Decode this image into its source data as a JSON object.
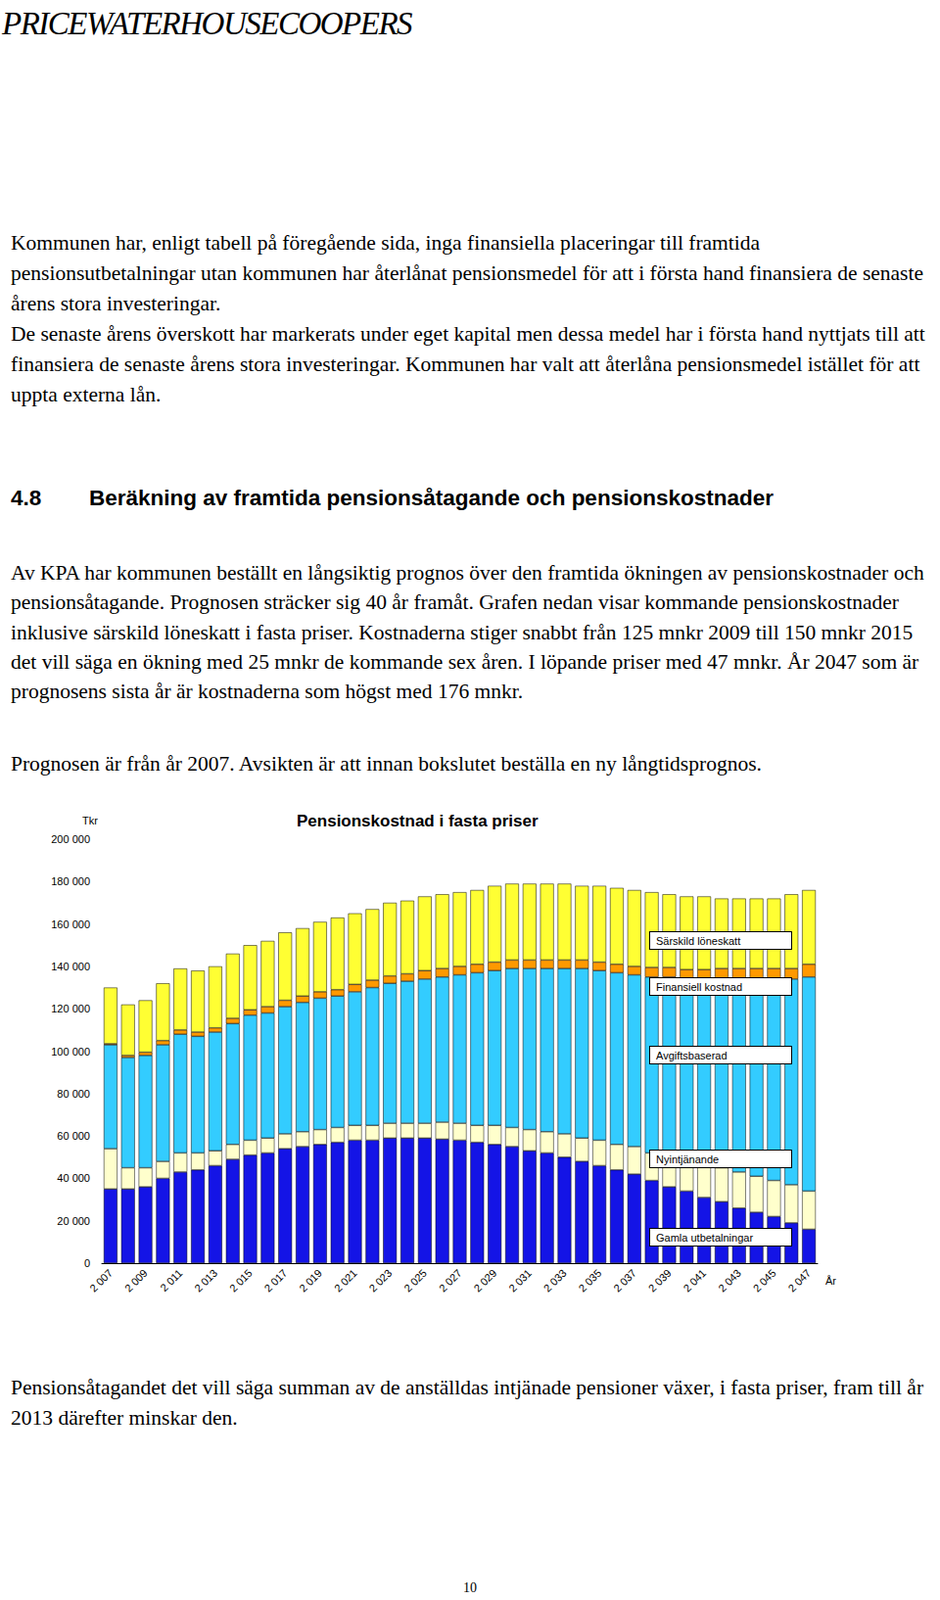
{
  "header": {
    "logo": "PRICEWATERHOUSECOOPERS"
  },
  "paragraphs_before": [
    "Kommunen har, enligt tabell på föregående sida, inga finansiella placeringar till framtida pensionsutbetalningar utan kommunen har återlånat pensionsmedel för att i första hand finansiera de senaste årens stora investeringar.",
    "De senaste årens överskott har markerats under eget kapital men dessa medel har i första hand nyttjats till att finansiera de senaste årens stora investeringar. Kommunen har valt att återlåna pensionsmedel istället för att uppta externa lån."
  ],
  "section": {
    "number": "4.8",
    "heading": "Beräkning av framtida pensionsåtagande och pensionskostnader"
  },
  "paragraphs_section": [
    "Av KPA har kommunen beställt en långsiktig prognos över den framtida ökningen av pensionskostnader och pensionsåtagande. Prognosen sträcker sig 40 år framåt. Grafen nedan visar kommande pensionskostnader inklusive särskild löneskatt i fasta priser. Kostnaderna stiger snabbt från 125 mnkr 2009 till 150 mnkr 2015 det vill säga en ökning med 25 mnkr de kommande sex åren. I löpande priser med 47 mnkr. År 2047 som är prognosens sista år är kostnaderna som högst med 176 mnkr.",
    "Prognosen är från år 2007. Avsikten är att innan bokslutet beställa en ny långtidsprognos."
  ],
  "chart_data": {
    "type": "bar",
    "title": "Pensionskostnad i fasta priser",
    "y_label": "Tkr",
    "x_label": "År",
    "stacked": true,
    "grid": false,
    "legend": "right",
    "categories": [
      "2 007",
      null,
      "2 009",
      null,
      "2 011",
      null,
      "2 013",
      null,
      "2 015",
      null,
      "2 017",
      null,
      "2 019",
      null,
      "2 021",
      null,
      "2 023",
      null,
      "2 025",
      null,
      "2 027",
      null,
      "2 029",
      null,
      "2 031",
      null,
      "2 033",
      null,
      "2 035",
      null,
      "2 037",
      null,
      "2 039",
      null,
      "2 041",
      null,
      "2 043",
      null,
      "2 045",
      null,
      "2 047"
    ],
    "series": [
      {
        "name": "Gamla utbetalningar",
        "color": "#1414e6",
        "values": [
          35000,
          35000,
          36000,
          40000,
          43000,
          44000,
          46000,
          49000,
          51000,
          52000,
          54000,
          55000,
          56000,
          57000,
          58000,
          58000,
          59000,
          59000,
          59000,
          58500,
          58000,
          57000,
          56000,
          55000,
          53000,
          52000,
          50000,
          48000,
          46000,
          44000,
          42000,
          39000,
          36000,
          34000,
          31000,
          29000,
          26000,
          24000,
          22000,
          19000,
          16000
        ]
      },
      {
        "name": "Nyintjänande",
        "color": "#ffffcc",
        "values": [
          19000,
          10000,
          9000,
          8000,
          9000,
          8000,
          7000,
          7000,
          7000,
          7000,
          7000,
          7000,
          7000,
          7000,
          7000,
          7000,
          7000,
          7000,
          7000,
          8000,
          8000,
          8000,
          9000,
          9000,
          10000,
          10000,
          11000,
          11000,
          12000,
          12000,
          13000,
          13000,
          14000,
          15000,
          15000,
          16000,
          17000,
          17000,
          17000,
          18000,
          18000
        ]
      },
      {
        "name": "Avgiftsbaserad",
        "color": "#33ccff",
        "values": [
          49000,
          52000,
          53000,
          55000,
          56000,
          55000,
          56000,
          57000,
          59000,
          59000,
          60000,
          61000,
          62000,
          62000,
          63000,
          65000,
          66000,
          67000,
          68000,
          68500,
          70000,
          72000,
          73000,
          75000,
          76000,
          77000,
          78000,
          80000,
          80000,
          81000,
          81000,
          83000,
          85000,
          85000,
          88000,
          89000,
          91000,
          93000,
          95000,
          97000,
          101000
        ]
      },
      {
        "name": "Finansiell kostnad",
        "color": "#ff9900",
        "values": [
          500,
          1000,
          1500,
          2000,
          2000,
          2000,
          2000,
          2500,
          2500,
          3000,
          3000,
          3000,
          3000,
          3000,
          3500,
          3500,
          3500,
          3500,
          4000,
          4000,
          4000,
          4000,
          4000,
          4000,
          4000,
          4000,
          4000,
          4000,
          4000,
          4000,
          4000,
          4500,
          4500,
          4500,
          4500,
          5000,
          5000,
          5000,
          5000,
          5000,
          6000
        ]
      },
      {
        "name": "Särskild löneskatt",
        "color": "#ffff33",
        "values": [
          26500,
          24000,
          24500,
          27000,
          29000,
          29000,
          29000,
          30500,
          30500,
          31000,
          32000,
          32000,
          33000,
          34000,
          33500,
          33500,
          34500,
          34500,
          35000,
          35000,
          35000,
          35000,
          36000,
          36000,
          36000,
          36000,
          36000,
          35000,
          36000,
          36000,
          36000,
          35500,
          34500,
          34500,
          34500,
          33000,
          33000,
          33000,
          33000,
          35000,
          35000
        ]
      }
    ],
    "ylim": [
      0,
      200000
    ],
    "yticks": [
      0,
      {
        "value": 20000,
        "label": "20 000"
      },
      {
        "value": 40000,
        "label": "40 000"
      },
      {
        "value": 60000,
        "label": "60 000"
      },
      {
        "value": 80000,
        "label": "80 000"
      },
      {
        "value": 100000,
        "label": "100 000"
      },
      {
        "value": 120000,
        "label": "120 000"
      },
      {
        "value": 140000,
        "label": "140 000"
      },
      {
        "value": 160000,
        "label": "160 000"
      },
      {
        "value": 180000,
        "label": "180 000"
      },
      {
        "value": 200000,
        "label": "200 000"
      }
    ]
  },
  "paragraphs_after": [
    "Pensionsåtagandet det vill säga summan av de anställdas intjänade pensioner växer, i fasta priser, fram till år 2013 därefter minskar den."
  ],
  "page_number": "10"
}
